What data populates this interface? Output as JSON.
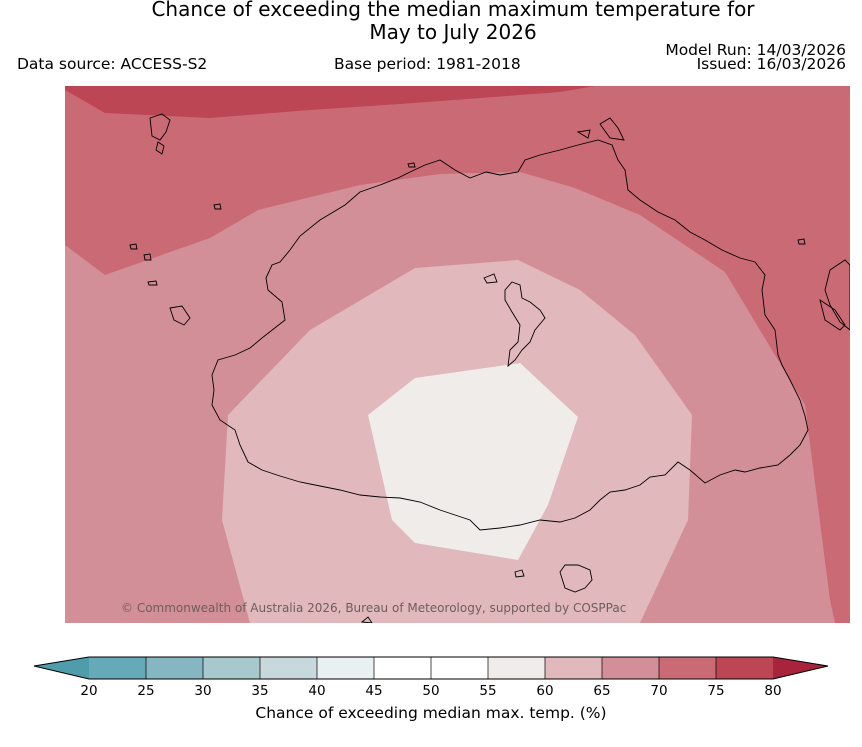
{
  "title": {
    "line1": "Chance of exceeding the median maximum temperature for",
    "line2": "May to July 2026"
  },
  "meta": {
    "data_source": "Data source: ACCESS-S2",
    "base_period": "Base period: 1981-2018",
    "model_run": "Model Run: 14/03/2026",
    "issued": "Issued: 16/03/2026"
  },
  "copyright": "© Commonwealth of Australia 2026, Bureau of Meteorology, supported by COSPPac",
  "colorbar": {
    "label": "Chance of exceeding median max. temp. (%)",
    "ticks": [
      "20",
      "25",
      "30",
      "35",
      "40",
      "45",
      "50",
      "55",
      "60",
      "65",
      "70",
      "75",
      "80"
    ],
    "colors": [
      "#66a9b8",
      "#86b6c2",
      "#a7c9ce",
      "#c7d9dc",
      "#e8f0f2",
      "#ffffff",
      "#ffffff",
      "#efecea",
      "#e1b8bc",
      "#d38f97",
      "#c96a75",
      "#bd4655"
    ],
    "under_color": "#4f9caa",
    "over_color": "#a8243c"
  },
  "map": {
    "zone_colors": {
      "p75": "#bd4655",
      "p70": "#c96a75",
      "p65": "#d38f97",
      "p60": "#e1b8bc",
      "p55": "#efecea"
    },
    "coastline_color": "#000000"
  }
}
